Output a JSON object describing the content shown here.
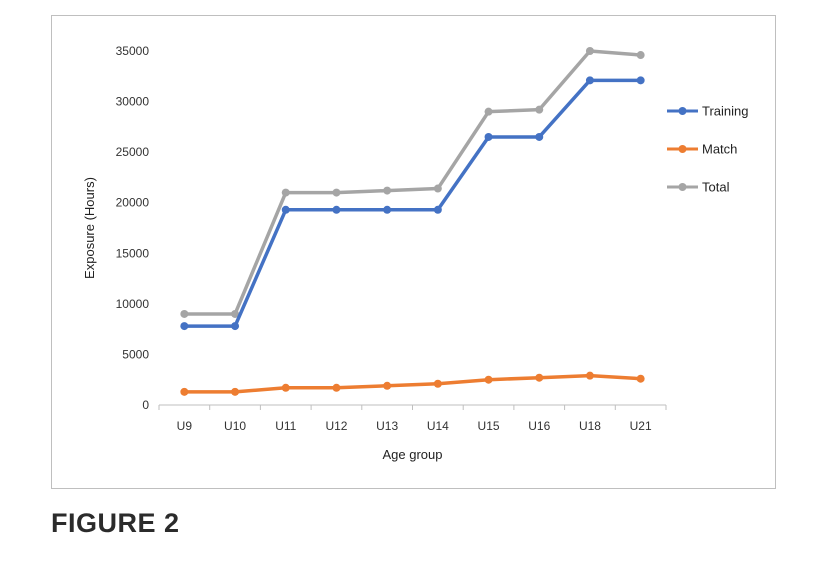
{
  "caption": "FIGURE 2",
  "chart_data": {
    "type": "line",
    "title": "",
    "xlabel": "Age group",
    "ylabel": "Exposure  (Hours)",
    "categories": [
      "U9",
      "U10",
      "U11",
      "U12",
      "U13",
      "U14",
      "U15",
      "U16",
      "U18",
      "U21"
    ],
    "ylim": [
      0,
      35000
    ],
    "yticks": [
      0,
      5000,
      10000,
      15000,
      20000,
      25000,
      30000,
      35000
    ],
    "grid": false,
    "legend": "right",
    "series": [
      {
        "name": "Training",
        "color": "#4472c4",
        "values": [
          7800,
          7800,
          19300,
          19300,
          19300,
          19300,
          26500,
          26500,
          32100,
          32100
        ]
      },
      {
        "name": "Match",
        "color": "#ed7d31",
        "values": [
          1300,
          1300,
          1700,
          1700,
          1900,
          2100,
          2500,
          2700,
          2900,
          2600
        ]
      },
      {
        "name": "Total",
        "color": "#a5a5a5",
        "values": [
          9000,
          9000,
          21000,
          21000,
          21200,
          21400,
          29000,
          29200,
          35000,
          34600
        ]
      }
    ]
  }
}
